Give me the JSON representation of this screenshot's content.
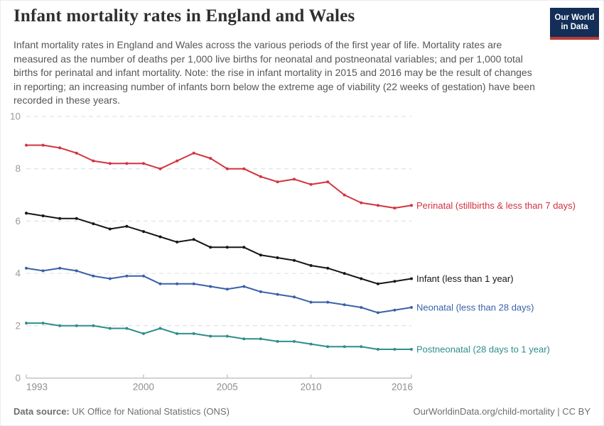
{
  "header": {
    "title": "Infant mortality rates in England and Wales",
    "subtitle": "Infant mortality rates in England and Wales across the various periods of the first year of life. Mortality rates are measured as the number of deaths per 1,000 live births for neonatal and postneonatal variables; and per 1,000 total births for perinatal and infant mortality. Note: the rise in infant mortality in 2015 and 2016 may be the result of changes in reporting; an increasing number of infants born below the extreme age of viability (22 weeks of gestation) have been recorded in these years.",
    "logo_line1": "Our World",
    "logo_line2": "in Data",
    "logo_bg_color": "#132e57",
    "logo_stripe_color": "#bc3c36"
  },
  "footer": {
    "source_label": "Data source:",
    "source_text": " UK Office for National Statistics (ONS)",
    "credit": "OurWorldinData.org/child-mortality | CC BY"
  },
  "chart_data": {
    "type": "line",
    "title": "Infant mortality rates in England and Wales",
    "x": [
      1993,
      1994,
      1995,
      1996,
      1997,
      1998,
      1999,
      2000,
      2001,
      2002,
      2003,
      2004,
      2005,
      2006,
      2007,
      2008,
      2009,
      2010,
      2011,
      2012,
      2013,
      2014,
      2015,
      2016
    ],
    "series": [
      {
        "name": "Perinatal (stillbirths & less than 7 days)",
        "color": "#d2333f",
        "values": [
          8.9,
          8.9,
          8.8,
          8.6,
          8.3,
          8.2,
          8.2,
          8.2,
          8.0,
          8.3,
          8.6,
          8.4,
          8.0,
          8.0,
          7.7,
          7.5,
          7.6,
          7.4,
          7.5,
          7.0,
          6.7,
          6.6,
          6.5,
          6.6
        ]
      },
      {
        "name": "Infant (less than 1 year)",
        "color": "#161616",
        "values": [
          6.3,
          6.2,
          6.1,
          6.1,
          5.9,
          5.7,
          5.8,
          5.6,
          5.4,
          5.2,
          5.3,
          5.0,
          5.0,
          5.0,
          4.7,
          4.6,
          4.5,
          4.3,
          4.2,
          4.0,
          3.8,
          3.6,
          3.7,
          3.8
        ]
      },
      {
        "name": "Neonatal (less than 28 days)",
        "color": "#3a61a9",
        "values": [
          4.2,
          4.1,
          4.2,
          4.1,
          3.9,
          3.8,
          3.9,
          3.9,
          3.6,
          3.6,
          3.6,
          3.5,
          3.4,
          3.5,
          3.3,
          3.2,
          3.1,
          2.9,
          2.9,
          2.8,
          2.7,
          2.5,
          2.6,
          2.7
        ]
      },
      {
        "name": "Postneonatal (28 days to 1 year)",
        "color": "#2f8e89",
        "values": [
          2.1,
          2.1,
          2.0,
          2.0,
          2.0,
          1.9,
          1.9,
          1.7,
          1.9,
          1.7,
          1.7,
          1.6,
          1.6,
          1.5,
          1.5,
          1.4,
          1.4,
          1.3,
          1.2,
          1.2,
          1.2,
          1.1,
          1.1,
          1.1
        ]
      }
    ],
    "xlabel": "",
    "ylabel": "",
    "ylim": [
      0,
      10
    ],
    "yticks": [
      0,
      2,
      4,
      6,
      8,
      10
    ],
    "xticks": [
      1993,
      2000,
      2005,
      2010,
      2016
    ],
    "grid": "horizontal-dashed",
    "legend_position": "end-of-line-labels"
  }
}
